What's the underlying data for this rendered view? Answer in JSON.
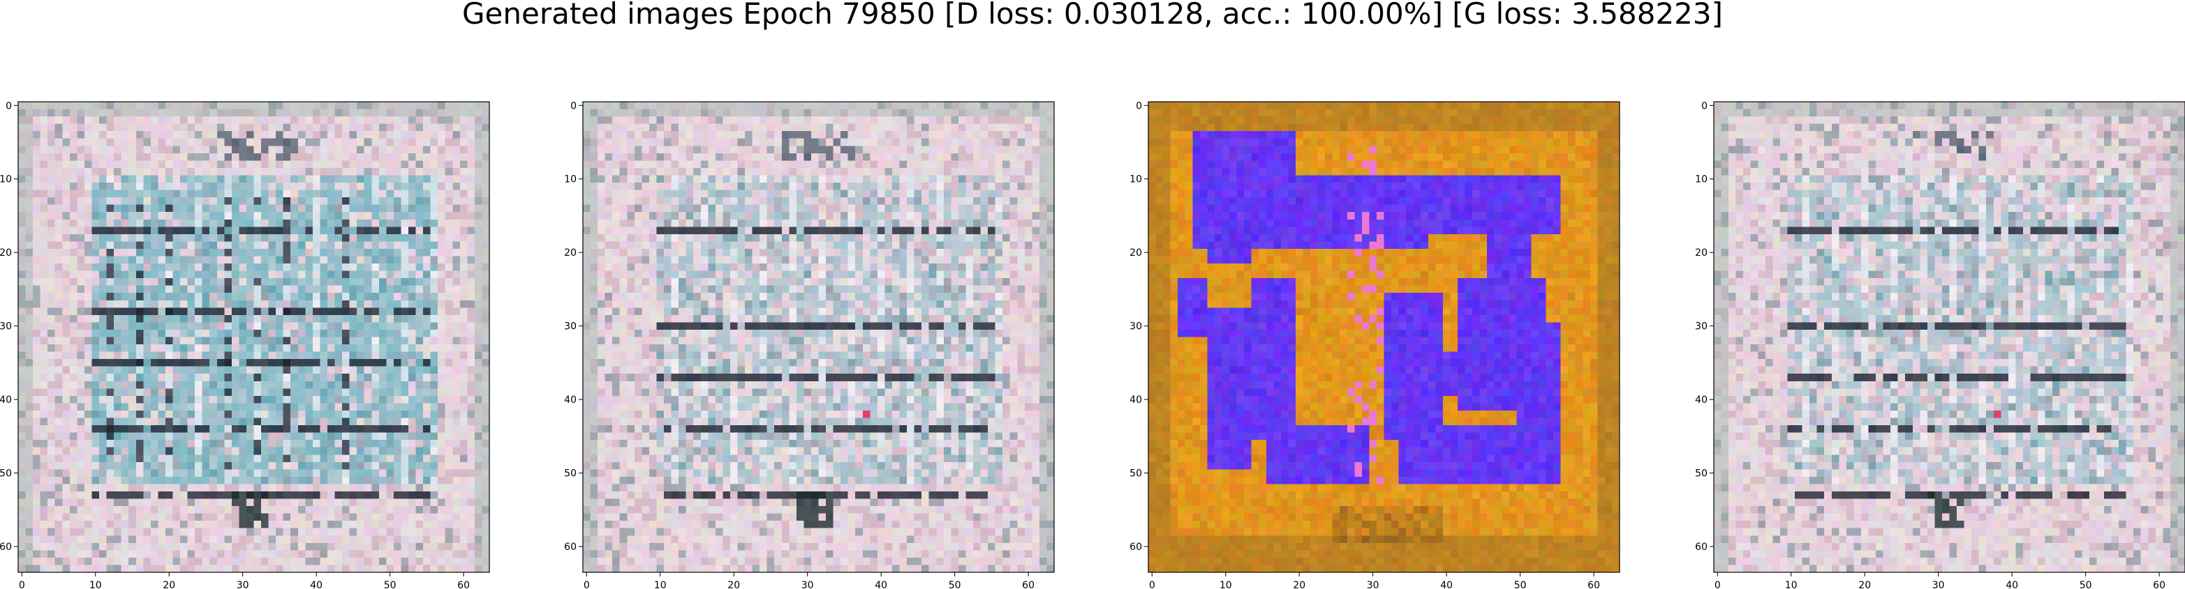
{
  "title": "Generated images Epoch 79850 [D loss: 0.030128, acc.: 100.00%] [G loss: 3.588223]",
  "chart_data": [
    {
      "type": "heatmap",
      "image_variant": "teal-grid",
      "xlim": [
        -0.5,
        63.5
      ],
      "ylim": [
        63.5,
        -0.5
      ],
      "xticks": [
        0,
        10,
        20,
        30,
        40,
        50,
        60
      ],
      "yticks": [
        0,
        10,
        20,
        30,
        40,
        50,
        60
      ],
      "grid": false
    },
    {
      "type": "heatmap",
      "image_variant": "light-grid",
      "xlim": [
        -0.5,
        63.5
      ],
      "ylim": [
        63.5,
        -0.5
      ],
      "xticks": [
        0,
        10,
        20,
        30,
        40,
        50,
        60
      ],
      "yticks": [
        0,
        10,
        20,
        30,
        40,
        50,
        60
      ],
      "grid": false
    },
    {
      "type": "heatmap",
      "image_variant": "orange-blue-glyph",
      "xlim": [
        -0.5,
        63.5
      ],
      "ylim": [
        63.5,
        -0.5
      ],
      "xticks": [
        0,
        10,
        20,
        30,
        40,
        50,
        60
      ],
      "yticks": [
        0,
        10,
        20,
        30,
        40,
        50,
        60
      ],
      "grid": false
    },
    {
      "type": "heatmap",
      "image_variant": "light-grid",
      "xlim": [
        -0.5,
        63.5
      ],
      "ylim": [
        63.5,
        -0.5
      ],
      "xticks": [
        0,
        10,
        20,
        30,
        40,
        50,
        60
      ],
      "yticks": [
        0,
        10,
        20,
        30,
        40,
        50,
        60
      ],
      "grid": false
    }
  ]
}
